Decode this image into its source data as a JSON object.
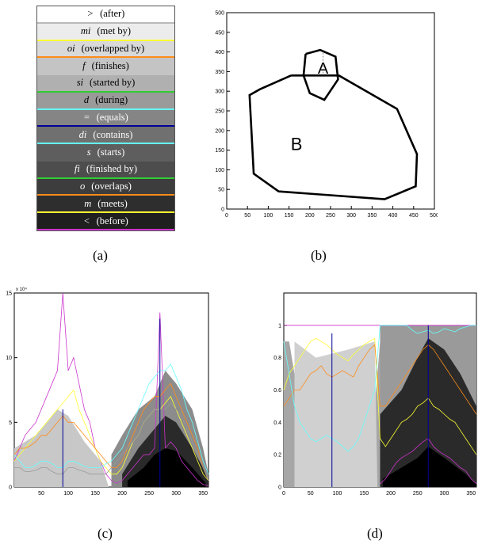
{
  "panels": {
    "a": {
      "caption": "(a)",
      "legend": [
        {
          "symbol": ">",
          "label": "(after)",
          "bg": "#ffffff",
          "fg": "#000000",
          "line": "#b9b9b9"
        },
        {
          "symbol": "mi",
          "label": "(met by)",
          "bg": "#ececec",
          "fg": "#000000",
          "line": "#ffff33"
        },
        {
          "symbol": "oi",
          "label": "(overlapped by)",
          "bg": "#d9d9d9",
          "fg": "#000000",
          "line": "#ff8c1a"
        },
        {
          "symbol": "f",
          "label": "(finishes)",
          "bg": "#c4c4c4",
          "fg": "#000000",
          "line": "#c4c4c4"
        },
        {
          "symbol": "si",
          "label": "(started by)",
          "bg": "#b0b0b0",
          "fg": "#000000",
          "line": "#33cc33"
        },
        {
          "symbol": "d",
          "label": "(during)",
          "bg": "#9a9a9a",
          "fg": "#000000",
          "line": "#66ffff"
        },
        {
          "symbol": "=",
          "label": "(equals)",
          "bg": "#858585",
          "fg": "#ffffff",
          "line": "#000099"
        },
        {
          "symbol": "di",
          "label": "(contains)",
          "bg": "#707070",
          "fg": "#ffffff",
          "line": "#66ffff"
        },
        {
          "symbol": "s",
          "label": "(starts)",
          "bg": "#5e5e5e",
          "fg": "#ffffff",
          "line": "#5e5e5e"
        },
        {
          "symbol": "fi",
          "label": "(finished by)",
          "bg": "#4d4d4d",
          "fg": "#ffffff",
          "line": "#33cc33"
        },
        {
          "symbol": "o",
          "label": "(overlaps)",
          "bg": "#3d3d3d",
          "fg": "#ffffff",
          "line": "#ff8c1a"
        },
        {
          "symbol": "m",
          "label": "(meets)",
          "bg": "#2e2e2e",
          "fg": "#ffffff",
          "line": "#ffff33"
        },
        {
          "symbol": "<",
          "label": "(before)",
          "bg": "#1f1f1f",
          "fg": "#ffffff",
          "line": "#cc33cc"
        }
      ]
    },
    "b": {
      "caption": "(b)",
      "region_a_label": "A",
      "region_b_label": "B"
    },
    "c": {
      "caption": "(c)",
      "exponent_label": "x 10⁴"
    },
    "d": {
      "caption": "(d)"
    }
  },
  "chart_data": [
    {
      "type": "line",
      "title": "",
      "xlim": [
        0,
        500
      ],
      "ylim": [
        0,
        500
      ],
      "xticks": [
        0,
        50,
        100,
        150,
        200,
        250,
        300,
        350,
        400,
        450,
        500
      ],
      "yticks": [
        0,
        50,
        100,
        150,
        200,
        250,
        300,
        350,
        400,
        450,
        500
      ],
      "grid": false,
      "series": [
        {
          "points": [
            [
              190,
              395
            ],
            [
              225,
              405
            ],
            [
              262,
              388
            ],
            [
              268,
              330
            ],
            [
              235,
              278
            ],
            [
              200,
              295
            ],
            [
              185,
              340
            ],
            [
              190,
              395
            ]
          ],
          "color": "#000000"
        },
        {
          "points": [
            [
              155,
              340
            ],
            [
              270,
              340
            ],
            [
              410,
              255
            ],
            [
              458,
              140
            ],
            [
              455,
              58
            ],
            [
              380,
              25
            ],
            [
              125,
              45
            ],
            [
              65,
              90
            ],
            [
              55,
              290
            ],
            [
              80,
              305
            ],
            [
              155,
              340
            ]
          ],
          "color": "#000000"
        }
      ]
    },
    {
      "type": "line",
      "title": "",
      "xlim": [
        0,
        360
      ],
      "ylim": [
        0,
        15
      ],
      "xticks": [
        50,
        100,
        150,
        200,
        250,
        300,
        350
      ],
      "yticks": [
        0,
        5,
        10,
        15
      ],
      "grid": false,
      "series": [
        {
          "color": "#cc33cc",
          "x": [
            0,
            10,
            20,
            30,
            40,
            50,
            60,
            70,
            80,
            90,
            100,
            110,
            120,
            130,
            140,
            150,
            160,
            170,
            180,
            190,
            200,
            210,
            220,
            230,
            240,
            250,
            260,
            270,
            280,
            290,
            300,
            310,
            320,
            330,
            340,
            350,
            360
          ],
          "values": [
            2,
            3,
            4,
            4.5,
            5,
            6,
            7,
            8,
            9,
            15,
            9,
            10,
            8,
            6,
            5,
            3,
            2,
            1,
            0.5,
            0.3,
            0.5,
            1,
            1.5,
            2,
            2.5,
            2.5,
            3,
            13.5,
            3,
            3.5,
            3,
            2,
            1.5,
            1,
            0.5,
            0.2,
            0.1
          ]
        },
        {
          "color": "#ffff33",
          "x": [
            0,
            10,
            20,
            30,
            40,
            50,
            60,
            70,
            80,
            90,
            100,
            110,
            120,
            130,
            140,
            150,
            160,
            170,
            180,
            190,
            200,
            210,
            220,
            230,
            240,
            250,
            260,
            270,
            280,
            290,
            300,
            310,
            320,
            330,
            340,
            350,
            360
          ],
          "values": [
            2,
            2.5,
            3,
            3.5,
            4,
            4.5,
            5,
            5.5,
            6,
            6.5,
            7,
            7.5,
            6,
            5,
            4,
            3,
            2,
            1.5,
            1,
            1,
            1.5,
            2.5,
            3.5,
            4,
            5,
            5.5,
            6,
            6,
            6.5,
            7,
            6,
            5,
            4,
            3,
            2,
            1,
            0.5
          ]
        },
        {
          "color": "#ff8c1a",
          "x": [
            0,
            10,
            20,
            30,
            40,
            50,
            60,
            70,
            80,
            90,
            100,
            110,
            120,
            130,
            140,
            150,
            160,
            170,
            180,
            190,
            200,
            210,
            220,
            230,
            240,
            250,
            260,
            270,
            280,
            290,
            300,
            310,
            320,
            330,
            340,
            350,
            360
          ],
          "values": [
            2.5,
            3,
            3,
            3.2,
            3.5,
            4,
            4,
            4.5,
            5,
            5.5,
            5,
            5,
            4.5,
            4,
            3.5,
            3,
            2.5,
            2,
            1.5,
            1.5,
            2,
            3,
            4,
            5,
            6,
            6.5,
            7,
            7,
            7.5,
            8,
            7,
            6,
            5,
            4,
            3,
            1.5,
            0.5
          ]
        },
        {
          "color": "#66ffff",
          "x": [
            0,
            10,
            20,
            30,
            40,
            50,
            60,
            70,
            80,
            90,
            100,
            110,
            120,
            130,
            140,
            150,
            160,
            170,
            180,
            190,
            200,
            210,
            220,
            230,
            240,
            250,
            260,
            270,
            280,
            290,
            300,
            310,
            320,
            330,
            340,
            350,
            360
          ],
          "values": [
            2.5,
            2,
            1.5,
            1.5,
            1.7,
            2,
            2,
            1.8,
            1.5,
            1.5,
            2,
            2,
            1.8,
            1.6,
            1.5,
            1.5,
            1.5,
            1.8,
            2,
            2.5,
            3,
            4,
            5,
            6,
            7,
            8,
            8.5,
            9,
            9,
            9.5,
            8.5,
            7.5,
            6,
            5,
            3.5,
            2,
            1
          ]
        },
        {
          "color": "#9a9a9a",
          "x": [
            0,
            10,
            20,
            30,
            40,
            50,
            60,
            70,
            80,
            90,
            100,
            110,
            120,
            130,
            140,
            150,
            160,
            170,
            180,
            190,
            200,
            210,
            220,
            230,
            240,
            250,
            260,
            270,
            280,
            290,
            300,
            310,
            320,
            330,
            340,
            350,
            360
          ],
          "values": [
            1.5,
            1.5,
            1.2,
            1.2,
            1.3,
            1.5,
            1.5,
            1.2,
            1,
            1,
            1.5,
            1.5,
            1.3,
            1.2,
            1,
            1,
            1,
            1,
            1.5,
            2,
            2.5,
            3,
            3.5,
            4,
            5,
            5.5,
            6,
            6,
            6,
            6.5,
            6,
            5.5,
            4.5,
            3.5,
            2.5,
            1.5,
            0.5
          ]
        }
      ]
    },
    {
      "type": "line",
      "title": "",
      "xlim": [
        0,
        360
      ],
      "ylim": [
        0,
        1.2
      ],
      "xticks": [
        0,
        50,
        100,
        150,
        200,
        250,
        300,
        350
      ],
      "yticks": [
        0,
        0.2,
        0.4,
        0.6,
        0.8,
        1
      ],
      "grid": false,
      "series": [
        {
          "color": "#cc33cc",
          "x": [
            0,
            90,
            100,
            180,
            270,
            360
          ],
          "values": [
            1,
            1,
            1,
            1,
            1,
            1
          ]
        },
        {
          "color": "#ffff33",
          "x": [
            0,
            10,
            20,
            30,
            40,
            50,
            60,
            70,
            80,
            90,
            100,
            110,
            120,
            130,
            140,
            150,
            160,
            170,
            180,
            190,
            200,
            210,
            220,
            230,
            240,
            250,
            260,
            270,
            280,
            290,
            300,
            310,
            320,
            330,
            340,
            350,
            360
          ],
          "values": [
            0.6,
            0.7,
            0.75,
            0.8,
            0.85,
            0.9,
            0.92,
            0.9,
            0.88,
            0.85,
            0.82,
            0.8,
            0.78,
            0.82,
            0.85,
            0.88,
            0.9,
            0.92,
            0.3,
            0.25,
            0.3,
            0.35,
            0.4,
            0.42,
            0.45,
            0.5,
            0.52,
            0.55,
            0.5,
            0.48,
            0.45,
            0.42,
            0.4,
            0.35,
            0.3,
            0.25,
            0.2
          ]
        },
        {
          "color": "#ff8c1a",
          "x": [
            0,
            10,
            20,
            30,
            40,
            50,
            60,
            70,
            80,
            90,
            100,
            110,
            120,
            130,
            140,
            150,
            160,
            170,
            180,
            190,
            200,
            210,
            220,
            230,
            240,
            250,
            260,
            270,
            280,
            290,
            300,
            310,
            320,
            330,
            340,
            350,
            360
          ],
          "values": [
            0.5,
            0.55,
            0.6,
            0.6,
            0.65,
            0.7,
            0.72,
            0.75,
            0.7,
            0.68,
            0.7,
            0.72,
            0.7,
            0.68,
            0.75,
            0.8,
            0.85,
            0.88,
            0.5,
            0.5,
            0.55,
            0.6,
            0.65,
            0.7,
            0.75,
            0.8,
            0.85,
            0.88,
            0.85,
            0.8,
            0.75,
            0.7,
            0.65,
            0.6,
            0.55,
            0.5,
            0.45
          ]
        },
        {
          "color": "#66ffff",
          "x": [
            0,
            10,
            20,
            30,
            40,
            50,
            60,
            70,
            80,
            90,
            100,
            110,
            120,
            130,
            140,
            150,
            160,
            170,
            180,
            190,
            200,
            210,
            220,
            230,
            240,
            250,
            260,
            270,
            280,
            290,
            300,
            310,
            320,
            330,
            340,
            350,
            360
          ],
          "values": [
            0.9,
            0.7,
            0.5,
            0.4,
            0.35,
            0.3,
            0.28,
            0.3,
            0.32,
            0.3,
            0.28,
            0.25,
            0.22,
            0.25,
            0.3,
            0.4,
            0.5,
            0.6,
            1,
            1,
            1,
            1,
            1,
            1,
            0.97,
            0.95,
            0.96,
            0.97,
            0.95,
            0.96,
            0.98,
            0.97,
            0.96,
            0.98,
            0.99,
            1,
            1
          ]
        },
        {
          "color": "#cc33cc",
          "x": [
            180,
            190,
            200,
            210,
            220,
            230,
            240,
            250,
            260,
            270,
            280,
            290,
            300,
            310,
            320,
            330,
            340,
            350,
            360
          ],
          "values": [
            0.02,
            0.05,
            0.1,
            0.15,
            0.18,
            0.2,
            0.22,
            0.25,
            0.28,
            0.3,
            0.25,
            0.22,
            0.2,
            0.18,
            0.15,
            0.12,
            0.1,
            0.05,
            0.02
          ]
        }
      ]
    }
  ]
}
